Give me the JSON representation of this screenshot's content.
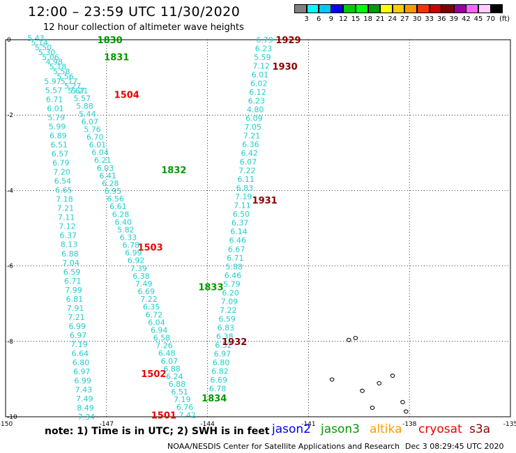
{
  "header": {
    "title": "12:00 – 23:59 UTC 11/30/2020",
    "subtitle": "12 hour collection of altimeter wave heights"
  },
  "colorbar": {
    "colors": [
      "#808080",
      "#00ffff",
      "#00c8ff",
      "#0000ff",
      "#00cc00",
      "#00ff00",
      "#009900",
      "#ffff00",
      "#ffcc00",
      "#ff9900",
      "#ff3300",
      "#cc0000",
      "#800000",
      "#990099",
      "#ff66ff",
      "#ffccff",
      "#000000"
    ],
    "ticks": [
      "3",
      "6",
      "9",
      "12",
      "15",
      "18",
      "21",
      "24",
      "27",
      "30",
      "33",
      "36",
      "39",
      "42",
      "45",
      "70"
    ],
    "unit": "(ft)"
  },
  "axes": {
    "lon_ticks": [
      -150,
      -147,
      -144,
      -141,
      -138,
      -135
    ],
    "lat_ticks": [
      0,
      -2,
      -4,
      -6,
      -8,
      -10
    ]
  },
  "note": "note:  1) Time is in UTC;  2) SWH is in feet",
  "satellites": [
    {
      "name": "jason2",
      "color": "#0000ee"
    },
    {
      "name": "jason3",
      "color": "#009900"
    },
    {
      "name": "altika",
      "color": "#ff9900"
    },
    {
      "name": "cryosat",
      "color": "#ee0000"
    },
    {
      "name": "s3a",
      "color": "#880000"
    }
  ],
  "credit": "NOAA/NESDIS Center for Satellite Applications and Research",
  "timestamp": "Dec  3 08:29:45 UTC 2020",
  "swh_color": "#22cccc",
  "tracks": [
    {
      "id": "t1",
      "lon_start": -149.1,
      "lat_start": 0.05,
      "lon_end": -147.9,
      "lat_end": -1.35,
      "values": [
        "5.43",
        "5.14",
        "5.50",
        "5.30",
        "5.06",
        "4.98",
        "5.18",
        "5.58",
        "5.56",
        "5.17",
        "5.27",
        "5.67"
      ]
    },
    {
      "id": "t2",
      "lon_start": -147.8,
      "lat_start": -1.35,
      "lon_end": -144.6,
      "lat_end": -9.95,
      "values": [
        "5.21",
        "5.57",
        "5.88",
        "5.44",
        "6.07",
        "5.76",
        "6.70",
        "6.01",
        "6.04",
        "6.21",
        "6.03",
        "6.41",
        "6.28",
        "6.95",
        "6.56",
        "6.61",
        "6.28",
        "6.40",
        "5.82",
        "6.33",
        "6.78",
        "6.99",
        "6.92",
        "7.39",
        "6.38",
        "7.49",
        "6.69",
        "7.22",
        "6.35",
        "6.72",
        "6.04",
        "6.94",
        "6.58",
        "7.26",
        "6.48",
        "6.07",
        "6.88",
        "6.24",
        "6.88",
        "6.51",
        "7.19",
        "6.76",
        "7.42"
      ]
    },
    {
      "id": "t3",
      "lon_start": -148.6,
      "lat_start": -1.1,
      "lon_end": -147.6,
      "lat_end": -10.0,
      "values": [
        "5.97",
        "5.57",
        "6.71",
        "6.01",
        "5.79",
        "5.99",
        "6.89",
        "6.51",
        "6.57",
        "6.79",
        "7.20",
        "6.54",
        "6.65",
        "7.18",
        "7.21",
        "7.11",
        "7.12",
        "6.37",
        "8.13",
        "6.88",
        "7.04",
        "6.59",
        "6.71",
        "7.99",
        "6.81",
        "7.91",
        "7.21",
        "6.99",
        "6.97",
        "7.19",
        "6.64",
        "6.80",
        "6.97",
        "6.99",
        "7.43",
        "7.49",
        "8.49",
        "7.34"
      ]
    },
    {
      "id": "t4",
      "lon_start": -142.3,
      "lat_start": 0.0,
      "lon_end": -143.7,
      "lat_end": -9.25,
      "values": [
        "6.79",
        "6.23",
        "5.59",
        "7.12",
        "6.01",
        "6.02",
        "6.12",
        "6.23",
        "4.80",
        "6.09",
        "7.05",
        "7.21",
        "6.36",
        "6.42",
        "6.07",
        "7.22",
        "6.11",
        "6.83",
        "7.19",
        "7.11",
        "6.50",
        "6.37",
        "6.14",
        "6.46",
        "6.67",
        "6.71",
        "5.88",
        "6.46",
        "5.79",
        "6.20",
        "7.09",
        "7.22",
        "6.59",
        "6.83",
        "6.38",
        "6.52",
        "6.97",
        "6.80",
        "6.82",
        "6.69",
        "6.78"
      ]
    }
  ],
  "pass_labels": [
    {
      "text": "1830",
      "sat": "jason3",
      "lon": -146.9,
      "lat": 0.0
    },
    {
      "text": "1831",
      "sat": "jason3",
      "lon": -146.7,
      "lat": -0.45
    },
    {
      "text": "1504",
      "sat": "cryosat",
      "lon": -146.4,
      "lat": -1.45
    },
    {
      "text": "1832",
      "sat": "jason3",
      "lon": -145.0,
      "lat": -3.45
    },
    {
      "text": "1503",
      "sat": "cryosat",
      "lon": -145.7,
      "lat": -5.5
    },
    {
      "text": "1833",
      "sat": "jason3",
      "lon": -143.9,
      "lat": -6.55
    },
    {
      "text": "1502",
      "sat": "cryosat",
      "lon": -145.6,
      "lat": -8.85
    },
    {
      "text": "1834",
      "sat": "jason3",
      "lon": -143.8,
      "lat": -9.5
    },
    {
      "text": "1501",
      "sat": "cryosat",
      "lon": -145.3,
      "lat": -9.95
    },
    {
      "text": "1929",
      "sat": "s3a",
      "lon": -141.6,
      "lat": 0.0
    },
    {
      "text": "1930",
      "sat": "s3a",
      "lon": -141.7,
      "lat": -0.7
    },
    {
      "text": "1931",
      "sat": "s3a",
      "lon": -142.3,
      "lat": -4.25
    },
    {
      "text": "1932",
      "sat": "s3a",
      "lon": -143.2,
      "lat": -8.0
    }
  ],
  "islands": [
    {
      "id": "marquesas-1",
      "lon": -139.8,
      "lat": -7.95
    },
    {
      "id": "marquesas-2",
      "lon": -139.6,
      "lat": -7.9
    },
    {
      "id": "island-3",
      "lon": -140.3,
      "lat": -9.0
    },
    {
      "id": "island-4",
      "lon": -138.9,
      "lat": -9.1
    },
    {
      "id": "island-5",
      "lon": -138.5,
      "lat": -8.9
    },
    {
      "id": "island-6",
      "lon": -139.4,
      "lat": -9.3
    },
    {
      "id": "island-7",
      "lon": -138.2,
      "lat": -9.6
    },
    {
      "id": "island-8",
      "lon": -139.1,
      "lat": -9.75
    },
    {
      "id": "island-9",
      "lon": -138.1,
      "lat": -9.85
    }
  ]
}
